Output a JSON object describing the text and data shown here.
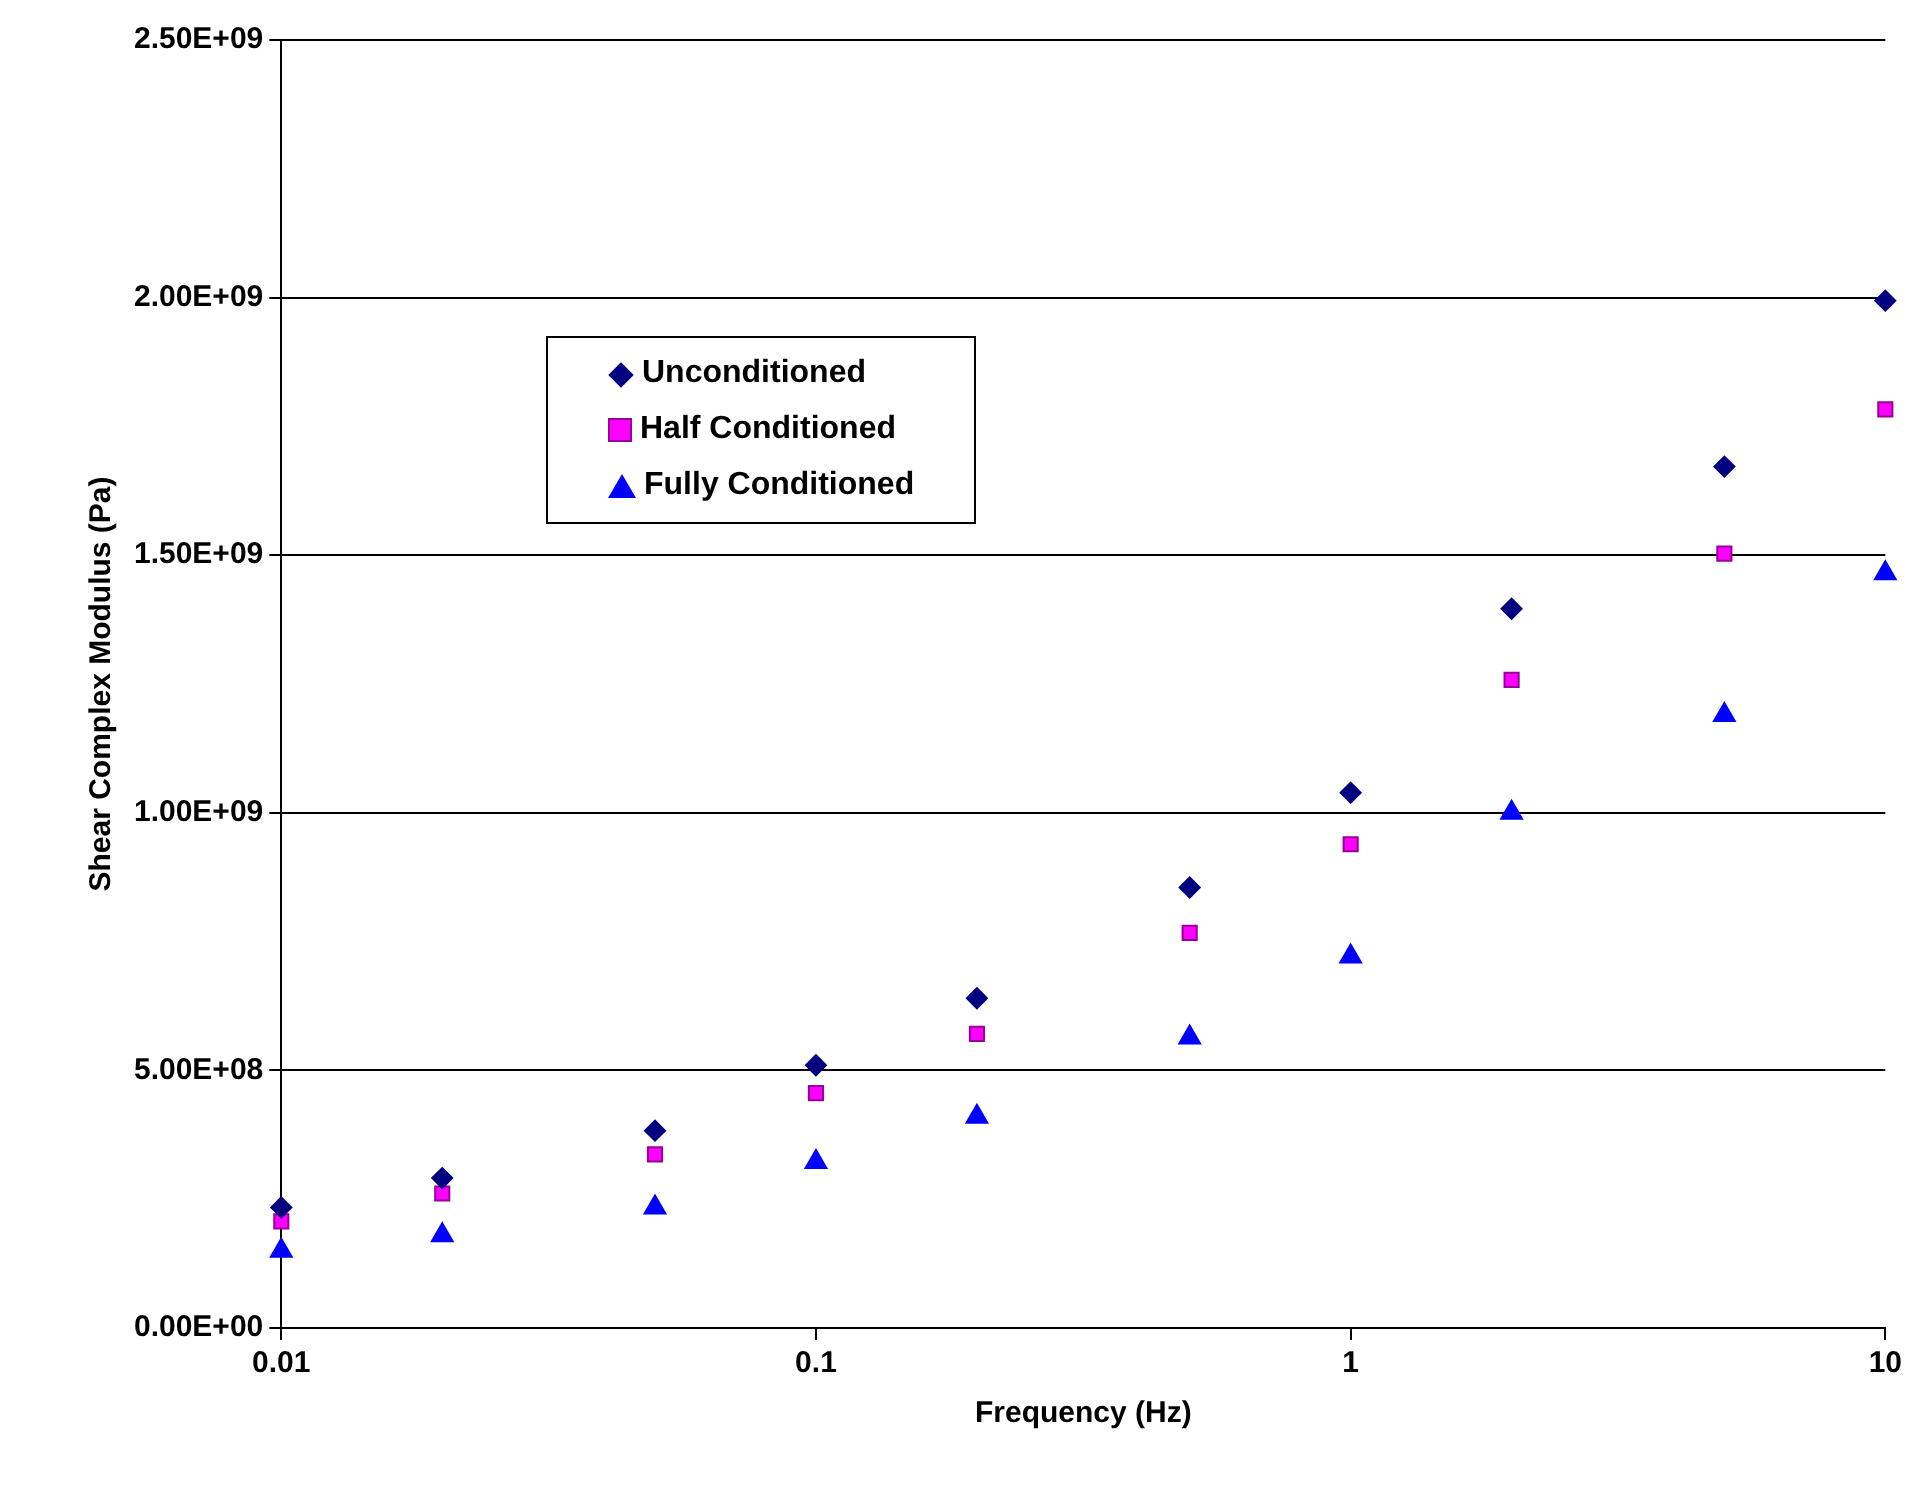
{
  "chart_data": {
    "type": "scatter",
    "xlabel": "Frequency (Hz)",
    "ylabel": "Shear Complex Modulus (Pa)",
    "x": [
      0.01,
      0.02,
      0.05,
      0.1,
      0.2,
      0.5,
      1,
      2,
      5,
      10
    ],
    "series": [
      {
        "name": "Unconditioned",
        "color": "#000080",
        "marker": "diamond",
        "values": [
          234000000,
          291000000,
          383000000,
          510000000,
          640000000,
          855000000,
          1039000000,
          1396000000,
          1672000000,
          1994000000
        ]
      },
      {
        "name": "Half Conditioned",
        "color": "#ff00ff",
        "marker": "square",
        "values": [
          207000000,
          261000000,
          337000000,
          456000000,
          571000000,
          767000000,
          939000000,
          1258000000,
          1503000000,
          1783000000
        ]
      },
      {
        "name": "Fully Conditioned",
        "color": "#0000ff",
        "marker": "triangle",
        "values": [
          150000000,
          180000000,
          234000000,
          322000000,
          410000000,
          564000000,
          721000000,
          1000000000,
          1190000000,
          1465000000
        ]
      }
    ],
    "log": "x",
    "xlim": [
      0.01,
      10
    ],
    "xticks": [
      0.01,
      0.1,
      1,
      10
    ],
    "ylim": [
      0,
      2500000000
    ],
    "yticks": [
      {
        "value": 0,
        "label": "0.00E+00"
      },
      {
        "value": 500000000,
        "label": "5.00E+08"
      },
      {
        "value": 1000000000,
        "label": "1.00E+09"
      },
      {
        "value": 1500000000,
        "label": "1.50E+09"
      },
      {
        "value": 2000000000,
        "label": "2.00E+09"
      },
      {
        "value": 2500000000,
        "label": "2.50E+09"
      }
    ],
    "grid": "y",
    "legend": "top left"
  }
}
